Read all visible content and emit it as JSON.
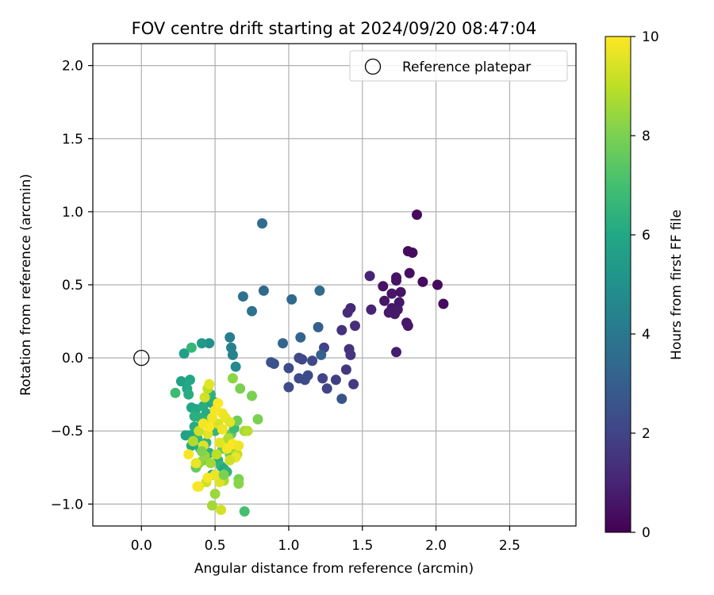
{
  "chart_data": {
    "type": "scatter",
    "title": "FOV centre drift starting at 2024/09/20 08:47:04",
    "xlabel": "Angular distance from reference (arcmin)",
    "ylabel": "Rotation from reference (arcmin)",
    "xlim": [
      -0.33,
      2.95
    ],
    "ylim": [
      -1.15,
      2.15
    ],
    "xticks": [
      "0.0",
      "0.5",
      "1.0",
      "1.5",
      "2.0",
      "2.5"
    ],
    "yticks": [
      "−1.0",
      "−0.5",
      "0.0",
      "0.5",
      "1.0",
      "1.5",
      "2.0"
    ],
    "grid": true,
    "legend": {
      "position": "top-right",
      "label": "Reference platepar"
    },
    "reference_point": {
      "x": 0.0,
      "y": 0.0
    },
    "colorbar": {
      "label": "Hours from first FF file",
      "range": [
        0,
        10
      ],
      "ticks": [
        "0",
        "2",
        "4",
        "6",
        "8",
        "10"
      ],
      "colormap": "viridis"
    },
    "points": [
      [
        1.87,
        0.98,
        0.3
      ],
      [
        1.81,
        0.73,
        0.3
      ],
      [
        1.84,
        0.72,
        0.3
      ],
      [
        1.82,
        0.58,
        0.4
      ],
      [
        1.91,
        0.52,
        0.3
      ],
      [
        2.01,
        0.5,
        0.3
      ],
      [
        2.05,
        0.37,
        0.3
      ],
      [
        1.73,
        0.55,
        0.5
      ],
      [
        1.73,
        0.53,
        0.5
      ],
      [
        1.64,
        0.49,
        0.5
      ],
      [
        1.7,
        0.44,
        0.6
      ],
      [
        1.76,
        0.45,
        0.5
      ],
      [
        1.65,
        0.39,
        0.6
      ],
      [
        1.75,
        0.38,
        0.6
      ],
      [
        1.7,
        0.34,
        0.6
      ],
      [
        1.68,
        0.31,
        0.7
      ],
      [
        1.72,
        0.3,
        0.7
      ],
      [
        1.74,
        0.33,
        0.7
      ],
      [
        1.8,
        0.24,
        0.6
      ],
      [
        1.81,
        0.22,
        0.6
      ],
      [
        1.73,
        0.04,
        0.8
      ],
      [
        1.55,
        0.56,
        1.0
      ],
      [
        1.56,
        0.33,
        1.0
      ],
      [
        1.42,
        0.34,
        1.1
      ],
      [
        1.4,
        0.31,
        1.2
      ],
      [
        1.45,
        0.22,
        1.3
      ],
      [
        1.36,
        0.19,
        1.4
      ],
      [
        1.41,
        0.06,
        1.4
      ],
      [
        1.42,
        0.02,
        1.5
      ],
      [
        1.39,
        -0.08,
        1.6
      ],
      [
        1.44,
        -0.18,
        1.7
      ],
      [
        1.32,
        -0.15,
        1.8
      ],
      [
        1.36,
        -0.28,
        2.6
      ],
      [
        1.26,
        -0.21,
        2.0
      ],
      [
        1.24,
        0.07,
        2.0
      ],
      [
        1.23,
        -0.14,
        2.0
      ],
      [
        1.16,
        -0.02,
        2.2
      ],
      [
        1.13,
        -0.12,
        2.3
      ],
      [
        1.11,
        -0.15,
        2.3
      ],
      [
        1.09,
        -0.01,
        2.1
      ],
      [
        1.07,
        0.0,
        2.2
      ],
      [
        1.07,
        -0.14,
        2.3
      ],
      [
        1.0,
        -0.07,
        2.3
      ],
      [
        1.0,
        -0.2,
        2.3
      ],
      [
        0.9,
        -0.04,
        2.5
      ],
      [
        0.88,
        -0.03,
        2.6
      ],
      [
        1.2,
        0.21,
        3.0
      ],
      [
        1.22,
        0.02,
        3.1
      ],
      [
        1.08,
        0.14,
        3.2
      ],
      [
        0.96,
        0.1,
        3.3
      ],
      [
        1.21,
        0.46,
        3.5
      ],
      [
        1.02,
        0.4,
        3.4
      ],
      [
        0.83,
        0.46,
        3.4
      ],
      [
        0.82,
        0.92,
        3.5
      ],
      [
        0.69,
        0.42,
        3.7
      ],
      [
        0.75,
        0.32,
        3.8
      ],
      [
        0.6,
        0.14,
        4.2
      ],
      [
        0.61,
        0.07,
        4.3
      ],
      [
        0.62,
        0.02,
        4.4
      ],
      [
        0.64,
        -0.06,
        4.7
      ],
      [
        0.46,
        0.1,
        5.0
      ],
      [
        0.41,
        0.1,
        5.4
      ],
      [
        0.29,
        0.03,
        5.6
      ],
      [
        0.34,
        0.07,
        6.6
      ],
      [
        0.27,
        -0.16,
        5.7
      ],
      [
        0.33,
        -0.15,
        5.9
      ],
      [
        0.31,
        -0.21,
        6.0
      ],
      [
        0.32,
        -0.25,
        6.2
      ],
      [
        0.23,
        -0.24,
        6.8
      ],
      [
        0.34,
        -0.34,
        5.9
      ],
      [
        0.37,
        -0.35,
        6.0
      ],
      [
        0.42,
        -0.33,
        6.2
      ],
      [
        0.44,
        -0.38,
        6.1
      ],
      [
        0.36,
        -0.4,
        6.3
      ],
      [
        0.4,
        -0.41,
        6.3
      ],
      [
        0.45,
        -0.43,
        6.5
      ],
      [
        0.48,
        -0.31,
        5.8
      ],
      [
        0.5,
        -0.35,
        6.0
      ],
      [
        0.49,
        -0.3,
        6.2
      ],
      [
        0.47,
        -0.25,
        6.4
      ],
      [
        0.3,
        -0.53,
        5.7
      ],
      [
        0.33,
        -0.53,
        5.8
      ],
      [
        0.36,
        -0.47,
        6.2
      ],
      [
        0.38,
        -0.55,
        6.6
      ],
      [
        0.34,
        -0.6,
        6.0
      ],
      [
        0.4,
        -0.62,
        6.3
      ],
      [
        0.44,
        -0.58,
        6.5
      ],
      [
        0.46,
        -0.65,
        6.3
      ],
      [
        0.5,
        -0.5,
        6.6
      ],
      [
        0.52,
        -0.7,
        6.2
      ],
      [
        0.54,
        -0.74,
        6.5
      ],
      [
        0.56,
        -0.76,
        6.0
      ],
      [
        0.48,
        -0.8,
        5.9
      ],
      [
        0.58,
        -0.78,
        6.4
      ],
      [
        0.61,
        -0.52,
        7.5
      ],
      [
        0.63,
        -0.48,
        6.8
      ],
      [
        0.65,
        -0.43,
        7.8
      ],
      [
        0.62,
        -0.14,
        8.3
      ],
      [
        0.67,
        -0.21,
        8.0
      ],
      [
        0.75,
        -0.26,
        8.0
      ],
      [
        0.79,
        -0.42,
        8.0
      ],
      [
        0.7,
        -0.5,
        8.6
      ],
      [
        0.72,
        -0.5,
        8.9
      ],
      [
        0.55,
        -0.62,
        7.5
      ],
      [
        0.6,
        -0.66,
        7.8
      ],
      [
        0.42,
        -0.7,
        7.8
      ],
      [
        0.37,
        -0.75,
        7.6
      ],
      [
        0.39,
        -0.72,
        8.3
      ],
      [
        0.43,
        -0.67,
        8.4
      ],
      [
        0.47,
        -0.72,
        8.6
      ],
      [
        0.51,
        -0.66,
        9.0
      ],
      [
        0.56,
        -0.58,
        9.2
      ],
      [
        0.59,
        -0.55,
        8.8
      ],
      [
        0.62,
        -0.62,
        8.5
      ],
      [
        0.65,
        -0.66,
        9.0
      ],
      [
        0.66,
        -0.83,
        8.0
      ],
      [
        0.66,
        -0.86,
        8.2
      ],
      [
        0.56,
        -0.84,
        8.8
      ],
      [
        0.53,
        -0.85,
        9.5
      ],
      [
        0.5,
        -0.8,
        9.7
      ],
      [
        0.44,
        -0.85,
        9.2
      ],
      [
        0.45,
        -0.82,
        9.9
      ],
      [
        0.39,
        -0.88,
        9.8
      ],
      [
        0.38,
        -0.88,
        9.9
      ],
      [
        0.5,
        -0.93,
        8.5
      ],
      [
        0.48,
        -1.01,
        8.6
      ],
      [
        0.54,
        -1.04,
        9.3
      ],
      [
        0.7,
        -1.05,
        7.0
      ],
      [
        0.32,
        -0.66,
        9.9
      ],
      [
        0.37,
        -0.72,
        9.7
      ],
      [
        0.42,
        -0.6,
        9.5
      ],
      [
        0.45,
        -0.52,
        9.6
      ],
      [
        0.52,
        -0.45,
        9.4
      ],
      [
        0.55,
        -0.38,
        9.8
      ],
      [
        0.57,
        -0.41,
        9.7
      ],
      [
        0.6,
        -0.44,
        9.6
      ],
      [
        0.48,
        -0.41,
        9.8
      ],
      [
        0.5,
        -0.36,
        9.9
      ],
      [
        0.52,
        -0.31,
        10.0
      ],
      [
        0.43,
        -0.27,
        9.3
      ],
      [
        0.45,
        -0.21,
        9.0
      ],
      [
        0.46,
        -0.18,
        9.6
      ],
      [
        0.39,
        -0.5,
        9.2
      ],
      [
        0.42,
        -0.45,
        9.9
      ],
      [
        0.46,
        -0.47,
        10.0
      ],
      [
        0.55,
        -0.49,
        9.8
      ],
      [
        0.58,
        -0.62,
        9.9
      ],
      [
        0.62,
        -0.59,
        10.0
      ],
      [
        0.64,
        -0.68,
        9.7
      ],
      [
        0.66,
        -0.6,
        9.8
      ],
      [
        0.6,
        -0.7,
        9.3
      ],
      [
        0.53,
        -0.58,
        9.6
      ],
      [
        0.35,
        -0.57,
        8.8
      ],
      [
        0.41,
        -0.64,
        8.1
      ],
      [
        0.56,
        -0.8,
        8.0
      ]
    ]
  }
}
